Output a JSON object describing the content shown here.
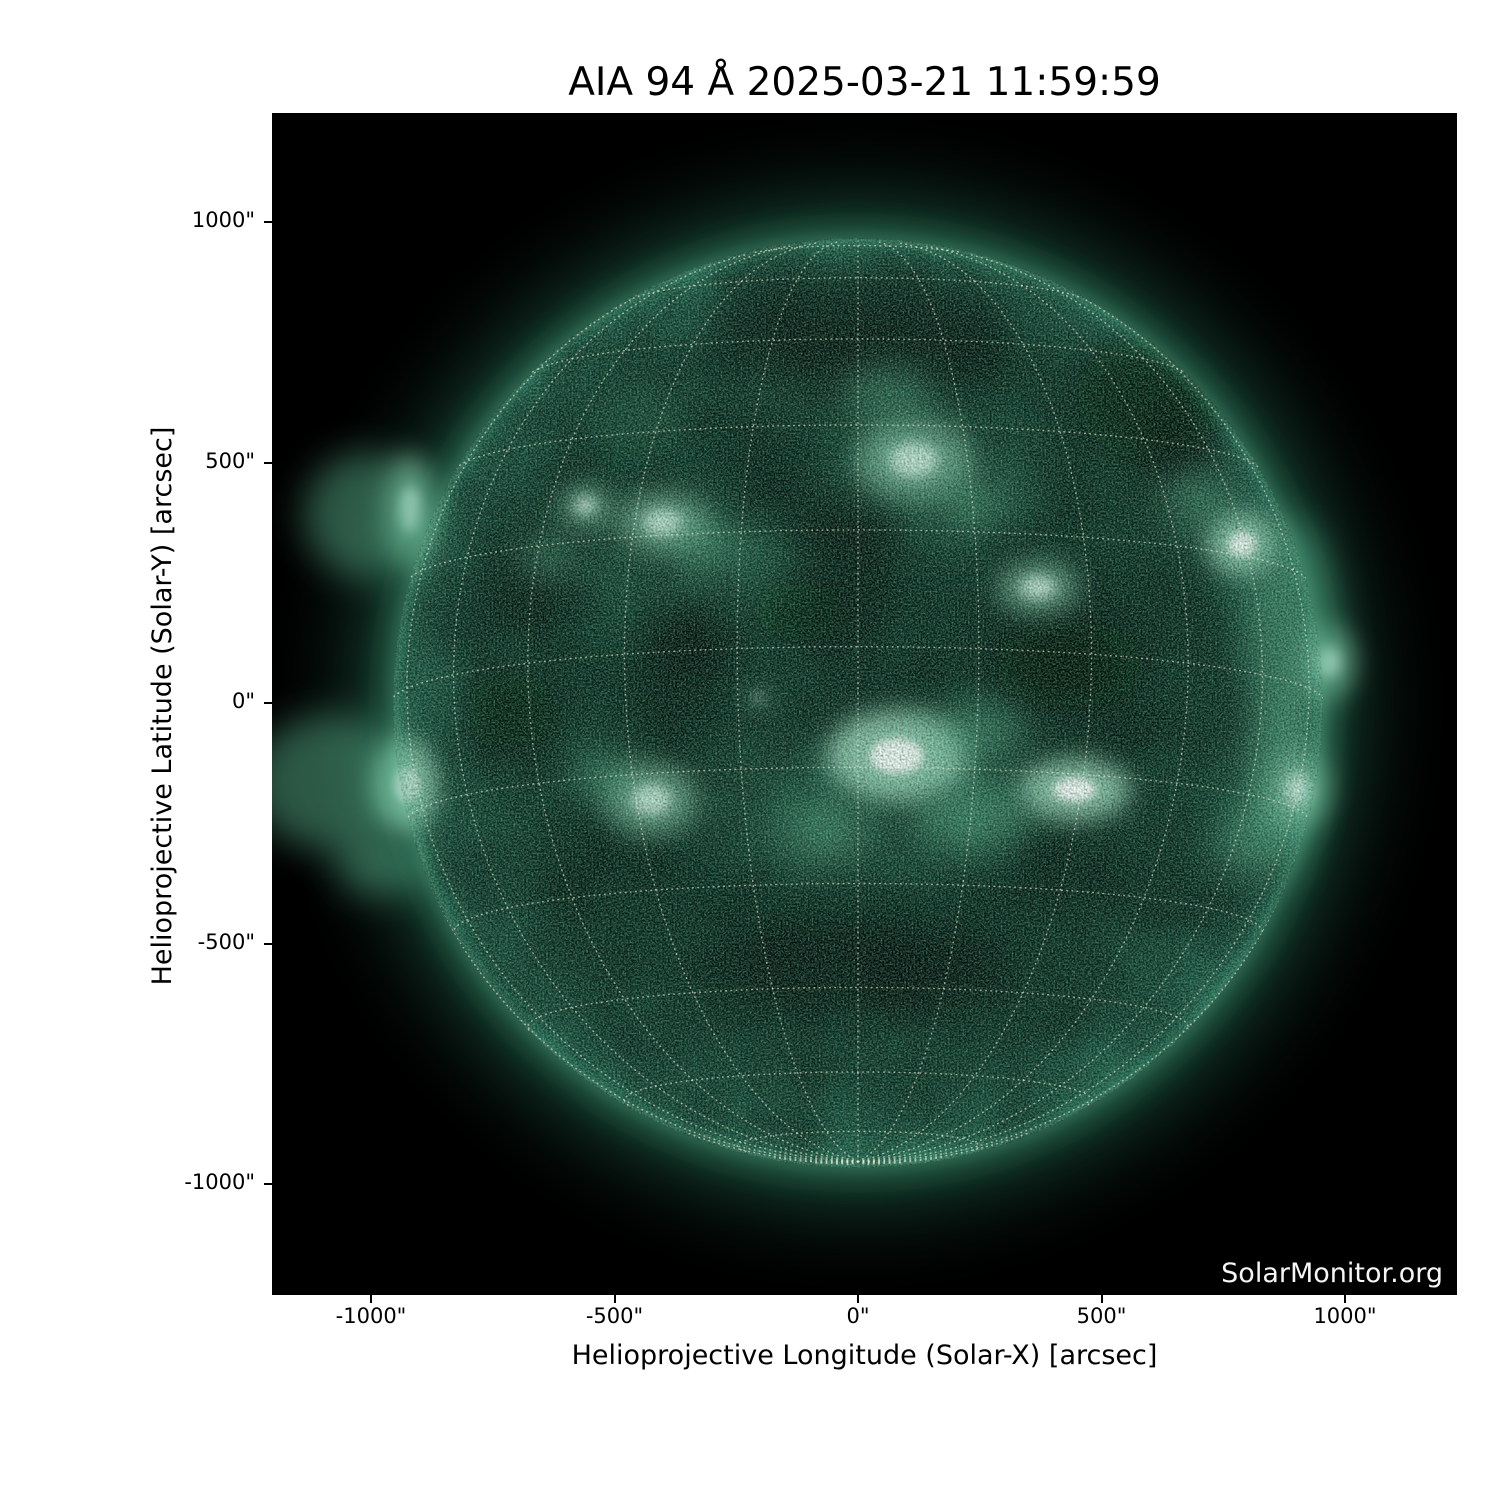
{
  "title": "AIA 94 Å 2025-03-21 11:59:59",
  "watermark": "SolarMonitor.org",
  "x_axis": {
    "label": "Helioprojective Longitude (Solar-X) [arcsec]",
    "ticks": [
      "-1000\"",
      "-500\"",
      "0\"",
      "500\"",
      "1000\""
    ]
  },
  "y_axis": {
    "label": "Helioprojective Latitude (Solar-Y) [arcsec]",
    "ticks": [
      "1000\"",
      "500\"",
      "0\"",
      "-500\"",
      "-1000\""
    ]
  },
  "chart_data": {
    "type": "heatmap",
    "title": "AIA 94 Å 2025-03-21 11:59:59",
    "xlabel": "Helioprojective Longitude (Solar-X) [arcsec]",
    "ylabel": "Helioprojective Latitude (Solar-Y) [arcsec]",
    "x_tick_values_arcsec": [
      -1000,
      -500,
      0,
      500,
      1000
    ],
    "y_tick_values_arcsec": [
      1000,
      500,
      0,
      -500,
      -1000
    ],
    "xlim": [
      -1204,
      1230
    ],
    "ylim": [
      -1229,
      1226
    ],
    "wavelength_label": "AIA 94 Å",
    "observation_time": "2025-03-21 11:59:59",
    "grid": true,
    "solar_disk": {
      "center_arcsec": [
        0,
        0
      ],
      "radius_arcsec": 960,
      "b0_deg": -7,
      "grid_spacing_deg": 15
    },
    "palette": {
      "figure_bg": "#ffffff",
      "plot_bg": "#000000",
      "disk_base": "#0d3226",
      "corona": "#2f8463",
      "bright_core": "#ffffff",
      "bright_halo": "#8fd2b3",
      "grid_dots": "#ebe8d6",
      "axis_text": "#000000",
      "watermark_text": "#f5f5f5"
    },
    "bright_regions_arcsec": [
      [
        -920,
        400,
        50,
        115,
        3
      ],
      [
        -1010,
        390,
        130,
        130,
        2
      ],
      [
        -950,
        150,
        70,
        260,
        1
      ],
      [
        -930,
        -170,
        65,
        95,
        4
      ],
      [
        -1080,
        -165,
        170,
        140,
        2
      ],
      [
        -980,
        -335,
        95,
        65,
        2
      ],
      [
        -400,
        375,
        95,
        62,
        3
      ],
      [
        -560,
        410,
        52,
        42,
        3
      ],
      [
        -318,
        318,
        72,
        52,
        2
      ],
      [
        -640,
        300,
        60,
        45,
        2
      ],
      [
        115,
        505,
        120,
        85,
        3
      ],
      [
        60,
        640,
        100,
        55,
        2
      ],
      [
        230,
        420,
        80,
        50,
        2
      ],
      [
        370,
        240,
        85,
        55,
        3
      ],
      [
        80,
        -110,
        145,
        95,
        4
      ],
      [
        445,
        -180,
        115,
        65,
        4
      ],
      [
        235,
        -235,
        125,
        75,
        2
      ],
      [
        -65,
        -265,
        95,
        65,
        2
      ],
      [
        250,
        -60,
        100,
        60,
        2
      ],
      [
        -425,
        -200,
        95,
        75,
        3
      ],
      [
        -520,
        -150,
        70,
        50,
        2
      ],
      [
        790,
        330,
        75,
        65,
        4
      ],
      [
        700,
        420,
        80,
        60,
        2
      ],
      [
        965,
        85,
        55,
        75,
        3
      ],
      [
        890,
        150,
        90,
        230,
        2
      ],
      [
        870,
        -140,
        80,
        150,
        2
      ],
      [
        825,
        -290,
        95,
        75,
        2
      ],
      [
        905,
        -180,
        60,
        80,
        3
      ],
      [
        -205,
        10,
        20,
        20,
        3
      ],
      [
        -150,
        645,
        130,
        65,
        1
      ],
      [
        -420,
        600,
        100,
        60,
        1
      ],
      [
        0,
        -200,
        350,
        180,
        1
      ],
      [
        -350,
        300,
        250,
        150,
        1
      ],
      [
        150,
        450,
        250,
        140,
        1
      ],
      [
        -125,
        -760,
        80,
        50,
        1
      ],
      [
        45,
        -680,
        70,
        45,
        1
      ]
    ],
    "dark_regions_arcsec": [
      [
        435,
        80,
        155,
        88,
        0.75
      ],
      [
        -715,
        -15,
        88,
        78,
        0.7
      ],
      [
        600,
        630,
        150,
        125,
        0.7
      ],
      [
        -120,
        190,
        98,
        58,
        0.6
      ],
      [
        -325,
        130,
        82,
        62,
        0.55
      ],
      [
        -40,
        360,
        120,
        70,
        0.5
      ],
      [
        0,
        -555,
        300,
        110,
        0.45
      ],
      [
        0,
        760,
        320,
        130,
        0.5
      ],
      [
        -660,
        250,
        110,
        90,
        0.5
      ],
      [
        660,
        500,
        100,
        80,
        0.5
      ]
    ]
  }
}
